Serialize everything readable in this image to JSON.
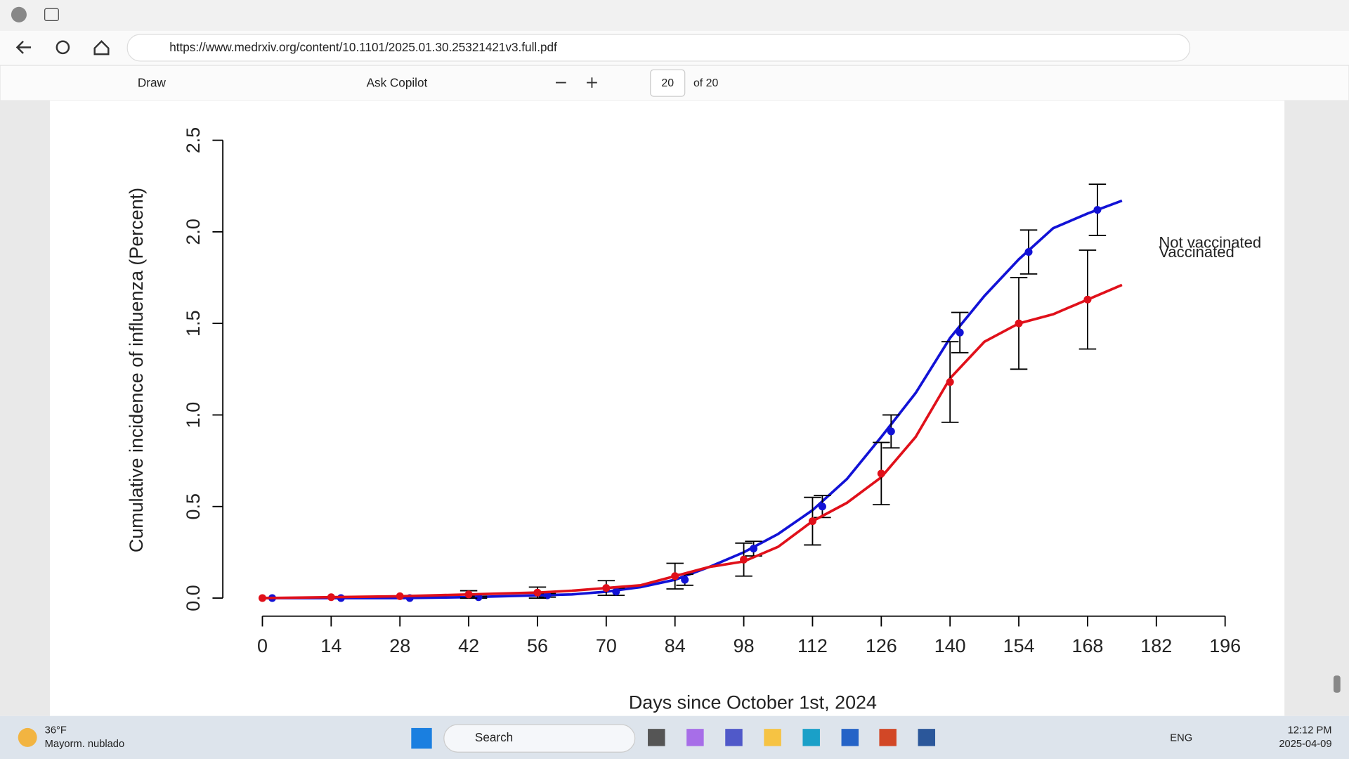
{
  "browser": {
    "url": "https://www.medrxiv.org/content/10.1101/2025.01.30.25321421v3.full.pdf",
    "toolbar": {
      "draw": "Draw",
      "ask": "Ask Copilot",
      "page": "20",
      "of": "of 20"
    }
  },
  "chart_data": {
    "type": "line",
    "ylabel": "Cumulative incidence of influenza (Percent)",
    "xlabel": "Days since October 1st, 2024",
    "xlim": [
      0,
      196
    ],
    "ylim": [
      0,
      2.5
    ],
    "xticks": [
      0,
      14,
      28,
      42,
      56,
      70,
      84,
      98,
      112,
      126,
      140,
      154,
      168,
      182,
      196
    ],
    "yticks": [
      {
        "value": 0,
        "label": "0.0"
      },
      {
        "value": 0.5,
        "label": "0.5"
      },
      {
        "value": 1,
        "label": "1.0"
      },
      {
        "value": 1.5,
        "label": "1.5"
      },
      {
        "value": 2,
        "label": "2.0"
      },
      {
        "value": 2.5,
        "label": "2.5"
      }
    ],
    "series": [
      {
        "name": "Vaccinated",
        "color": "#1212d6",
        "x": [
          0,
          14,
          28,
          42,
          56,
          63,
          70,
          77,
          84,
          91,
          98,
          105,
          112,
          119,
          126,
          133,
          140,
          147,
          154,
          161,
          168,
          175
        ],
        "values": [
          0,
          0,
          0,
          0.005,
          0.015,
          0.02,
          0.035,
          0.06,
          0.1,
          0.17,
          0.25,
          0.35,
          0.48,
          0.65,
          0.88,
          1.12,
          1.42,
          1.65,
          1.85,
          2.02,
          2.1,
          2.17
        ],
        "points": {
          "x": [
            2,
            16,
            30,
            44,
            58,
            72,
            86,
            100,
            114,
            128,
            142,
            156,
            170
          ],
          "values": [
            0,
            0,
            0,
            0.005,
            0.015,
            0.035,
            0.1,
            0.27,
            0.5,
            0.91,
            1.45,
            1.89,
            2.12
          ],
          "errors": [
            0,
            0,
            0,
            0.005,
            0.01,
            0.02,
            0.03,
            0.04,
            0.06,
            0.09,
            0.11,
            0.12,
            0.14
          ]
        }
      },
      {
        "name": "Not vaccinated",
        "color": "#e0101a",
        "x": [
          0,
          14,
          28,
          42,
          56,
          63,
          70,
          77,
          84,
          91,
          98,
          105,
          112,
          119,
          126,
          133,
          140,
          147,
          154,
          161,
          168,
          175
        ],
        "values": [
          0,
          0.005,
          0.01,
          0.02,
          0.03,
          0.04,
          0.055,
          0.07,
          0.12,
          0.17,
          0.2,
          0.28,
          0.42,
          0.52,
          0.66,
          0.88,
          1.2,
          1.4,
          1.5,
          1.55,
          1.63,
          1.71
        ],
        "points": {
          "x": [
            0,
            14,
            28,
            42,
            56,
            70,
            84,
            98,
            112,
            126,
            140,
            154,
            168
          ],
          "values": [
            0,
            0.005,
            0.01,
            0.02,
            0.03,
            0.055,
            0.12,
            0.21,
            0.42,
            0.68,
            1.18,
            1.5,
            1.63
          ],
          "errors": [
            0,
            0,
            0,
            0.02,
            0.03,
            0.04,
            0.07,
            0.09,
            0.13,
            0.17,
            0.22,
            0.25,
            0.27
          ]
        }
      }
    ]
  },
  "taskbar": {
    "temp": "36°F",
    "weather": "Mayorm. nublado",
    "search": "Search",
    "lang": "ENG",
    "time": "12:12 PM",
    "date": "2025-04-09"
  }
}
